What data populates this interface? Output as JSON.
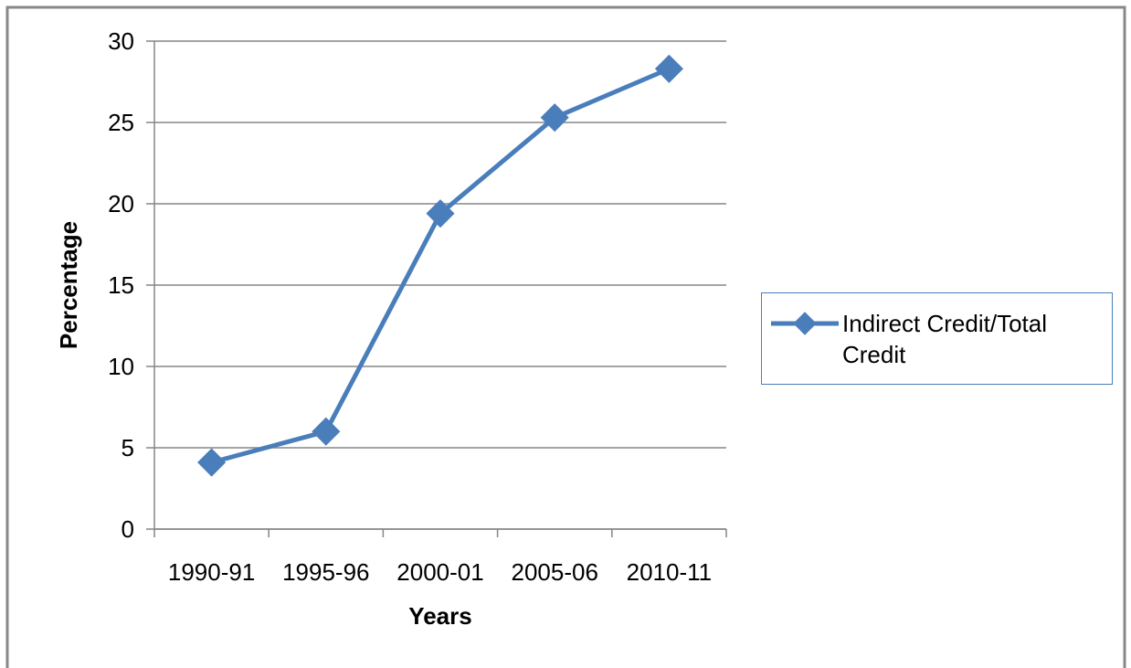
{
  "chart_data": {
    "type": "line",
    "x_label": "Years",
    "y_label": "Percentage",
    "categories": [
      "1990-91",
      "1995-96",
      "2000-01",
      "2005-06",
      "2010-11"
    ],
    "series": [
      {
        "name": "Indirect Credit/Total Credit",
        "color": "#4a7ebb",
        "values": [
          4.1,
          6.0,
          19.4,
          25.3,
          28.3
        ]
      }
    ],
    "ylim": [
      0,
      30
    ],
    "yticks": [
      0,
      5,
      10,
      15,
      20,
      25,
      30
    ],
    "grid": true,
    "legend": "right"
  }
}
